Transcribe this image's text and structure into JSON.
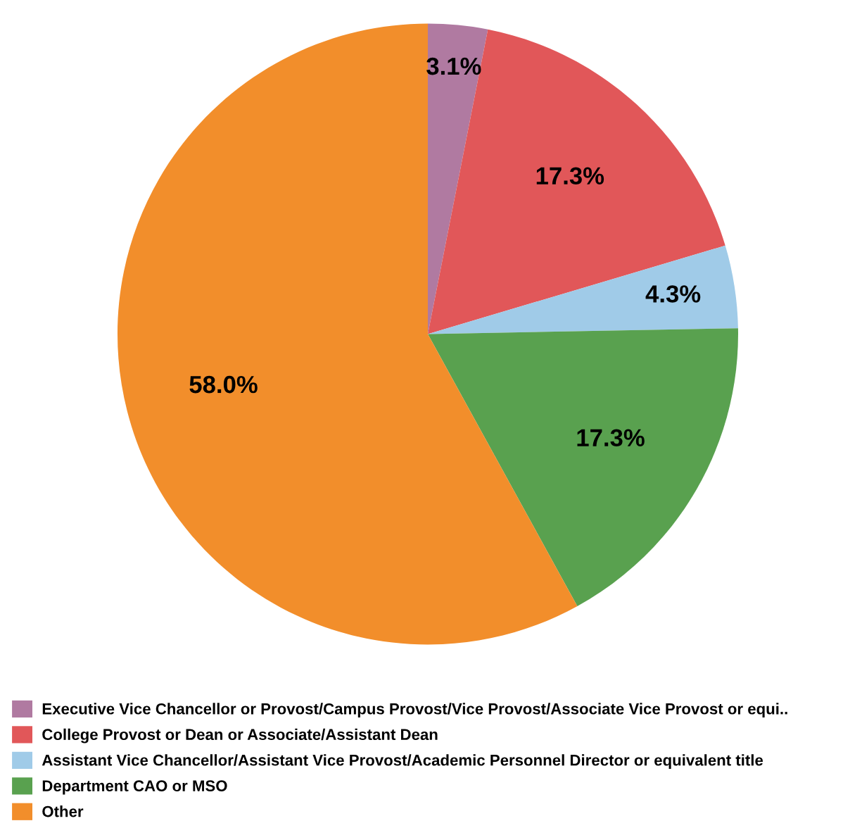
{
  "chart_data": {
    "type": "pie",
    "categories": [
      "Executive Vice Chancellor or Provost/Campus Provost/Vice Provost/Associate Vice Provost or equi..",
      "College Provost or Dean or Associate/Assistant Dean",
      "Assistant Vice Chancellor/Assistant Vice Provost/Academic Personnel Director or equivalent title",
      "Department CAO or MSO",
      "Other"
    ],
    "values": [
      3.1,
      17.3,
      4.3,
      17.3,
      58.0
    ],
    "colors": [
      "#b07aa1",
      "#e15759",
      "#a0cbe8",
      "#59a14f",
      "#f28e2b"
    ],
    "value_labels": [
      "3.1%",
      "17.3%",
      "4.3%",
      "17.3%",
      "58.0%"
    ],
    "legend": "bottom"
  }
}
